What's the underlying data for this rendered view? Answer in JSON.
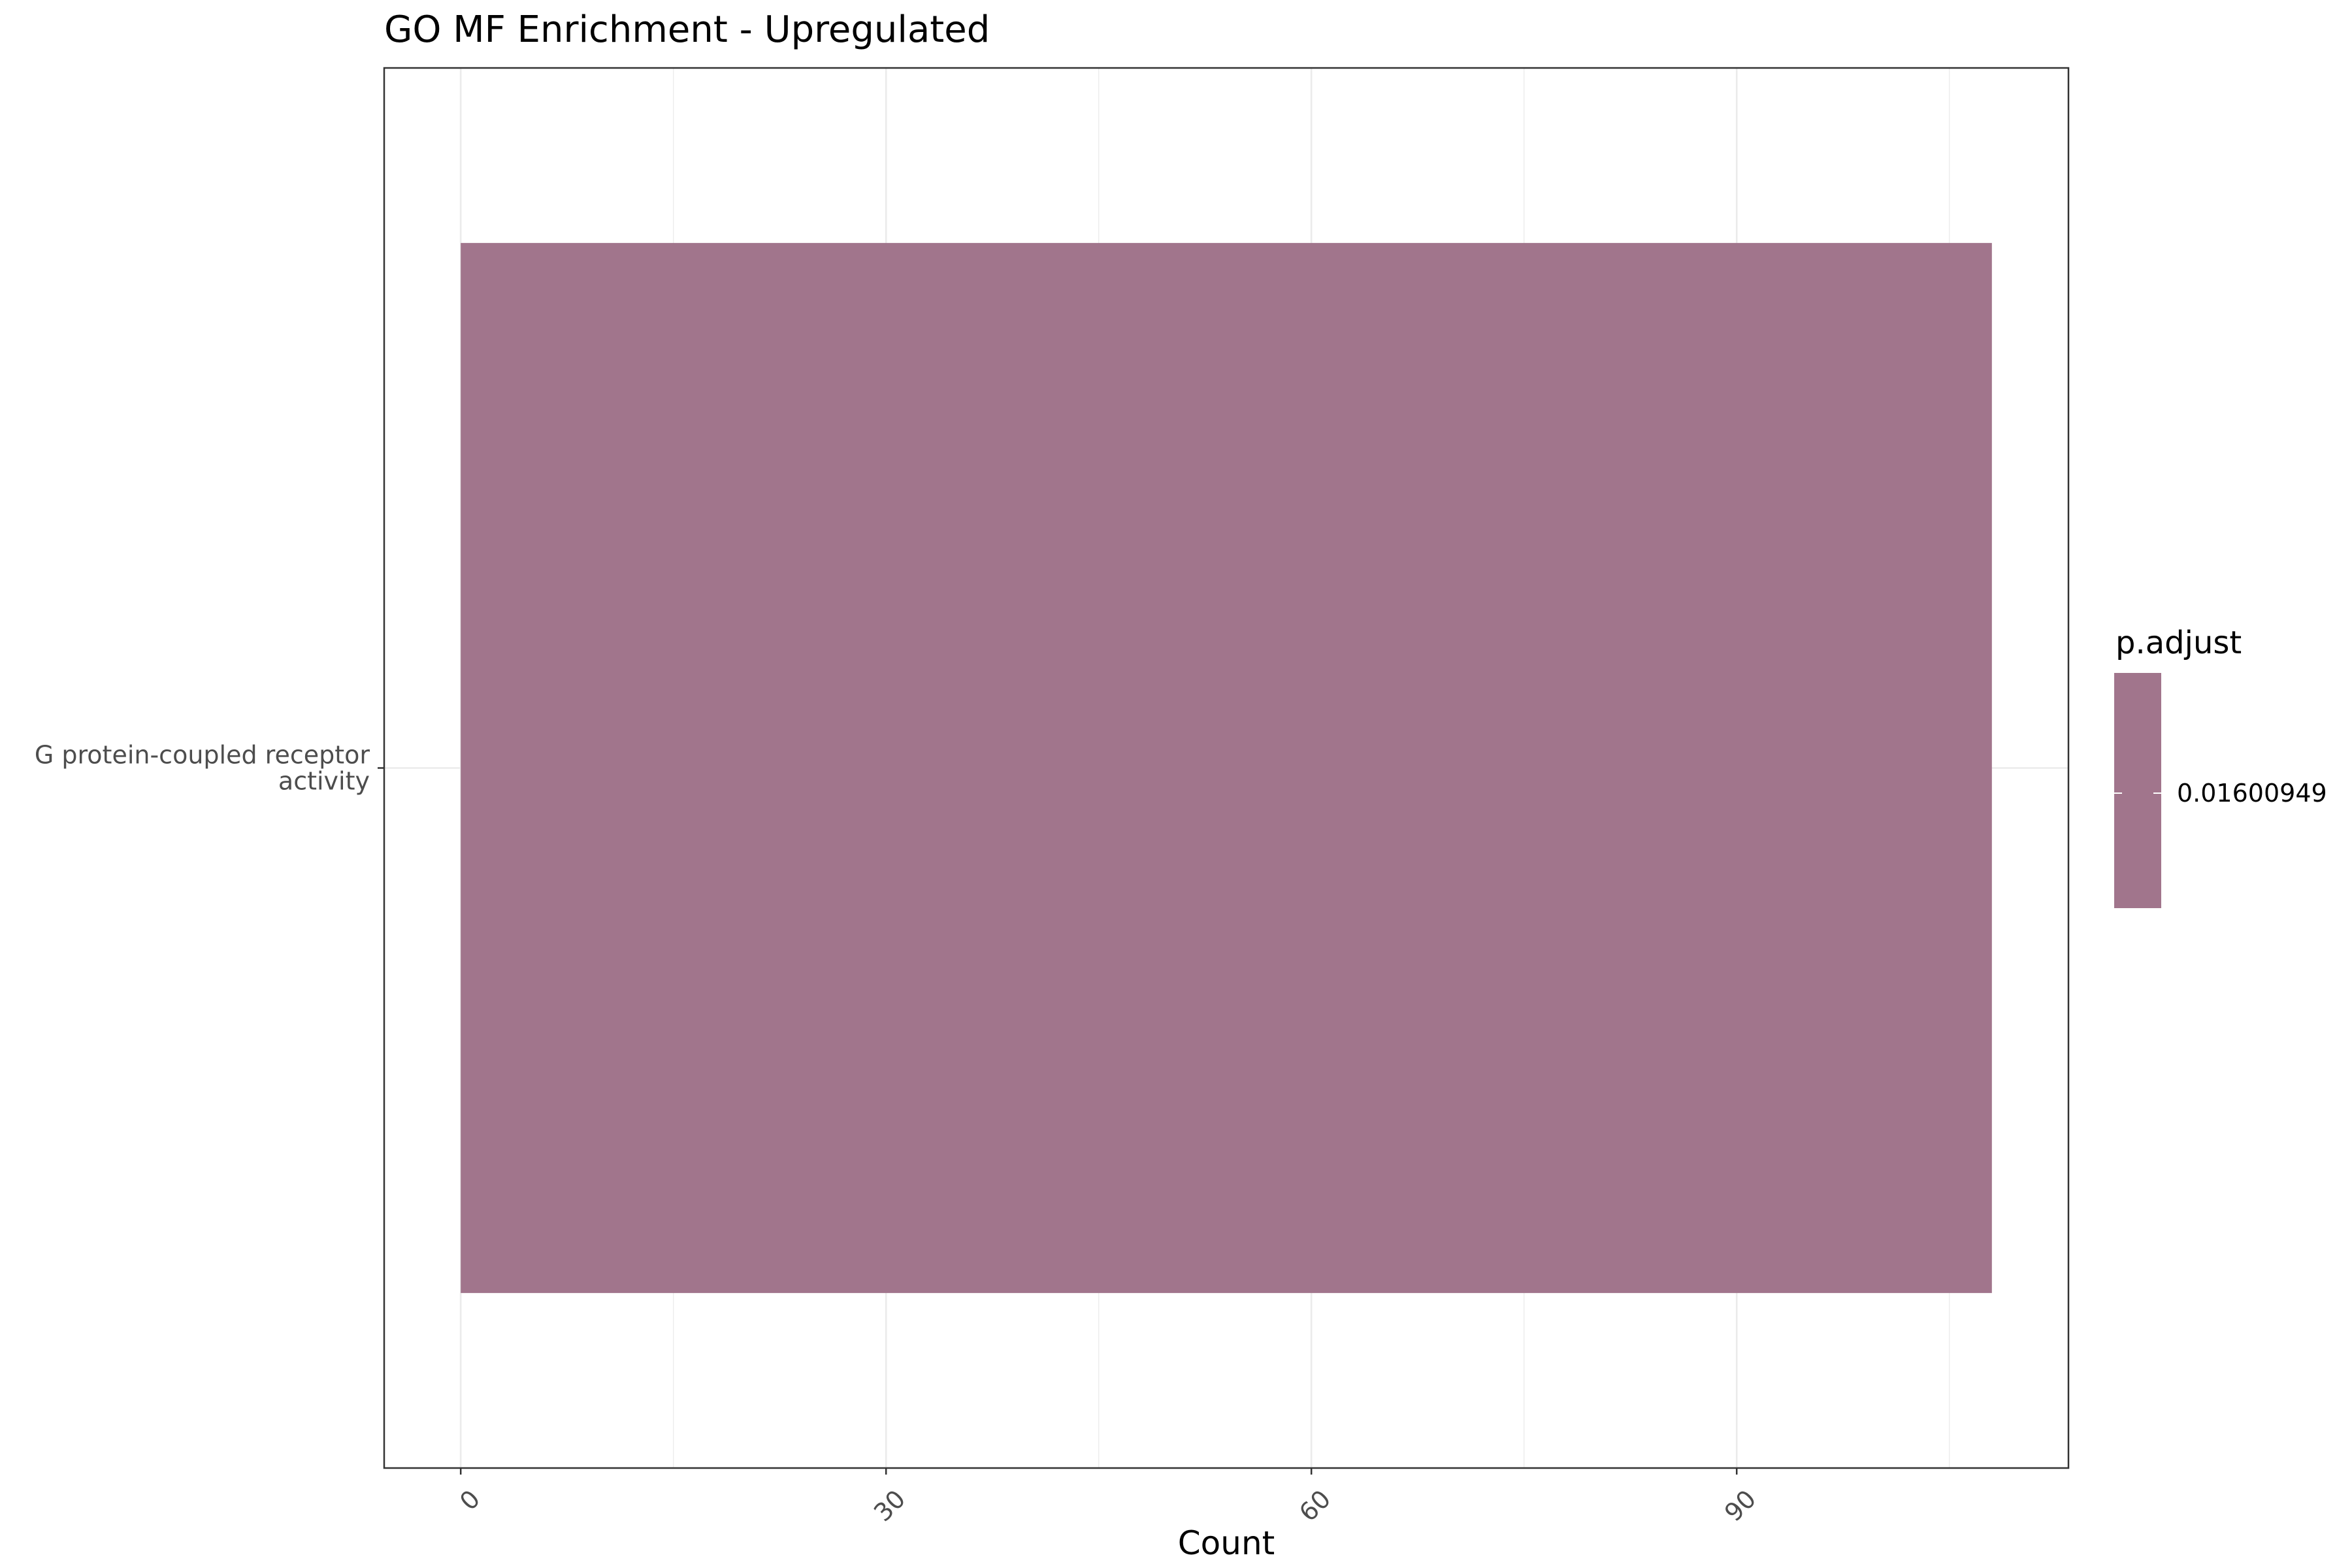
{
  "chart_data": {
    "type": "bar",
    "orientation": "horizontal",
    "title": "GO MF Enrichment - Upregulated",
    "xlabel": "Count",
    "ylabel": "",
    "categories": [
      "G protein-coupled receptor activity"
    ],
    "category_label_lines": [
      [
        "G protein-coupled receptor",
        "activity"
      ]
    ],
    "values": [
      108
    ],
    "xlim": [
      -5.4,
      113.4
    ],
    "xticks": [
      0,
      30,
      60,
      90
    ],
    "xtick_labels": [
      "0",
      "30",
      "60",
      "90"
    ],
    "grid": true,
    "legend": {
      "title": "p.adjust",
      "type": "colorbar",
      "position": "right",
      "labels": [
        "0.01600949"
      ],
      "values": [
        0.01600949
      ]
    },
    "colors": {
      "bar": "#a1758c",
      "grid": "#ebebeb",
      "panel_border": "#333333"
    }
  }
}
